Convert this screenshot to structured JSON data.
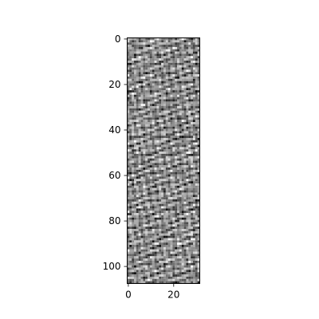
{
  "chart_data": {
    "type": "heatmap",
    "colormap": "gray",
    "rows": 108,
    "cols": 32,
    "pattern": "fine periodic grayscale texture",
    "xlim": [
      -0.5,
      31.5
    ],
    "ylim": [
      107.5,
      -0.5
    ],
    "x_ticks": [
      {
        "value": 0,
        "label": "0"
      },
      {
        "value": 20,
        "label": "20"
      }
    ],
    "y_ticks": [
      {
        "value": 0,
        "label": "0"
      },
      {
        "value": 20,
        "label": "20"
      },
      {
        "value": 40,
        "label": "40"
      },
      {
        "value": 60,
        "label": "60"
      },
      {
        "value": 80,
        "label": "80"
      },
      {
        "value": 100,
        "label": "100"
      }
    ],
    "title": "",
    "xlabel": "",
    "ylabel": "",
    "grid": false,
    "legend": "none",
    "frame_color": "#000000"
  }
}
